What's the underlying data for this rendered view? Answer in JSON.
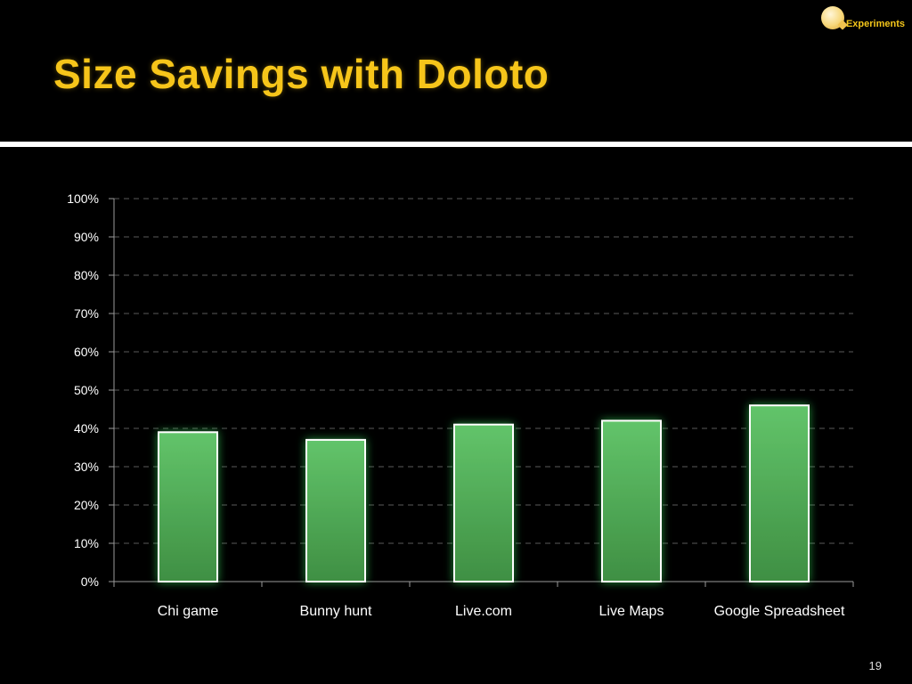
{
  "header": {
    "badge_label": "Experiments",
    "title": "Size Savings with Doloto"
  },
  "colors": {
    "background": "#000000",
    "title": "#f6c51a",
    "bar_top": "#62c46a",
    "bar_bottom": "#3f8f43",
    "bar_outline": "#ffffff",
    "bar_glow": "#3cff6a"
  },
  "footer": {
    "page_number": "19"
  },
  "chart_data": {
    "type": "bar",
    "title": "",
    "xlabel": "",
    "ylabel": "",
    "categories": [
      "Chi game",
      "Bunny hunt",
      "Live.com",
      "Live Maps",
      "Google Spreadsheet"
    ],
    "values": [
      0.39,
      0.37,
      0.41,
      0.42,
      0.46
    ],
    "ylim": [
      0,
      1
    ],
    "y_ticks": [
      0,
      0.1,
      0.2,
      0.3,
      0.4,
      0.5,
      0.6,
      0.7,
      0.8,
      0.9,
      1.0
    ],
    "y_tick_labels": [
      "0%",
      "10%",
      "20%",
      "30%",
      "40%",
      "50%",
      "60%",
      "70%",
      "80%",
      "90%",
      "100%"
    ],
    "grid": true,
    "legend": "none"
  }
}
